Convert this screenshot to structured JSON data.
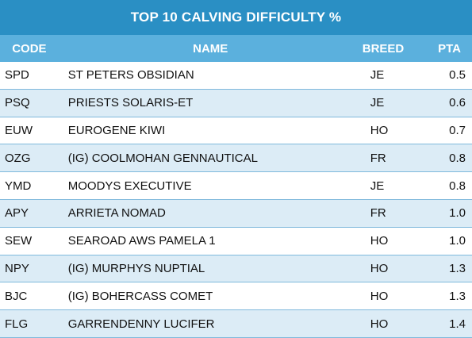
{
  "title": "TOP 10 CALVING DIFFICULTY %",
  "headers": {
    "code": "CODE",
    "name": "NAME",
    "breed": "BREED",
    "pta": "PTA"
  },
  "colors": {
    "title_bg": "#2a8fc4",
    "header_bg": "#5bb0dd",
    "stripe_bg": "#dcecf6",
    "row_border": "#7fb9dc"
  },
  "rows": [
    {
      "code": "SPD",
      "name": "ST PETERS OBSIDIAN",
      "breed": "JE",
      "pta": "0.5"
    },
    {
      "code": "PSQ",
      "name": "PRIESTS SOLARIS-ET",
      "breed": "JE",
      "pta": "0.6"
    },
    {
      "code": "EUW",
      "name": "EUROGENE KIWI",
      "breed": "HO",
      "pta": "0.7"
    },
    {
      "code": "OZG",
      "name": "(IG) COOLMOHAN GENNAUTICAL",
      "breed": "FR",
      "pta": "0.8"
    },
    {
      "code": "YMD",
      "name": "MOODYS EXECUTIVE",
      "breed": "JE",
      "pta": "0.8"
    },
    {
      "code": "APY",
      "name": "ARRIETA NOMAD",
      "breed": "FR",
      "pta": "1.0"
    },
    {
      "code": "SEW",
      "name": "SEAROAD AWS PAMELA 1",
      "breed": "HO",
      "pta": "1.0"
    },
    {
      "code": "NPY",
      "name": "(IG) MURPHYS NUPTIAL",
      "breed": "HO",
      "pta": "1.3"
    },
    {
      "code": "BJC",
      "name": "(IG) BOHERCASS COMET",
      "breed": "HO",
      "pta": "1.3"
    },
    {
      "code": "FLG",
      "name": "GARRENDENNY LUCIFER",
      "breed": "HO",
      "pta": "1.4"
    }
  ]
}
